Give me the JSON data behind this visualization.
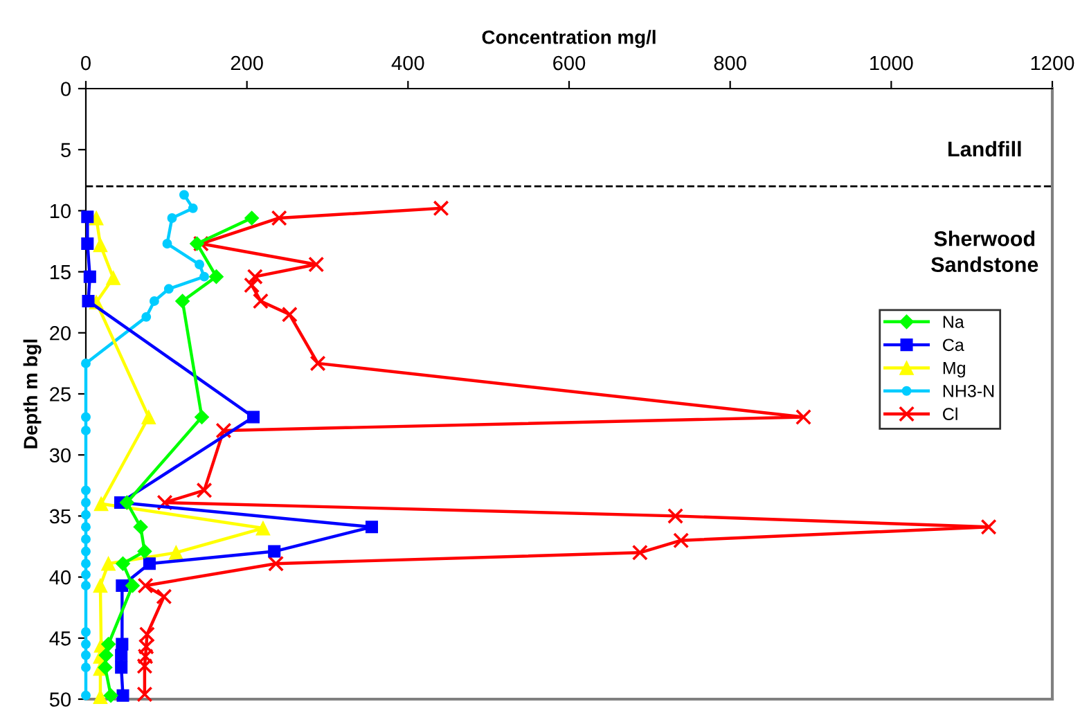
{
  "chart_data": {
    "type": "line",
    "orientation": "horizontal",
    "xlabel": "Concentration mg/l",
    "ylabel": "Depth m bgl",
    "xlim": [
      0,
      1200
    ],
    "xticks": [
      0,
      200,
      400,
      600,
      800,
      1000,
      1200
    ],
    "ylim": [
      50,
      0
    ],
    "yticks": [
      0,
      5,
      10,
      15,
      20,
      25,
      30,
      35,
      40,
      45,
      50
    ],
    "grid": false,
    "legend": "right",
    "line_style": "solid",
    "ref_lines": [
      {
        "axis": "y",
        "value": 8,
        "color": "#000000",
        "line_style": "dashed"
      }
    ],
    "annotations": [
      "Landfill",
      "Sherwood\nSandstone"
    ],
    "series": [
      {
        "name": "Na",
        "color": "#00ff00",
        "marker": "diamond",
        "x": [
          10.6,
          12.7,
          15.4,
          17.4,
          26.9,
          33.9,
          35.9,
          37.9,
          38.9,
          40.7,
          45.5,
          46.4,
          47.4,
          49.7
        ],
        "values": [
          206,
          138,
          162,
          120,
          144,
          51,
          68,
          73,
          46,
          58,
          28,
          25,
          24,
          31
        ]
      },
      {
        "name": "Ca",
        "color": "#0000ff",
        "marker": "square",
        "x": [
          10.5,
          12.7,
          15.4,
          17.4,
          26.9,
          33.9,
          35.9,
          37.9,
          38.9,
          40.7,
          45.5,
          46.4,
          47.4,
          49.7
        ],
        "values": [
          2,
          2,
          5,
          3,
          208,
          43,
          355,
          234,
          79,
          45,
          45,
          44,
          44,
          46
        ]
      },
      {
        "name": "Mg",
        "color": "#ffff00",
        "marker": "triangle",
        "x": [
          10.6,
          12.8,
          15.5,
          17.5,
          26.9,
          34,
          36,
          38,
          38.9,
          40.7,
          45.6,
          46.5,
          47.5,
          49.8
        ],
        "values": [
          13,
          18,
          34,
          13,
          78,
          19,
          220,
          112,
          28,
          18,
          19,
          18,
          18,
          18
        ]
      },
      {
        "name": "NH3-N",
        "color": "#00ccff",
        "marker": "circle",
        "x": [
          8.7,
          9.8,
          10.6,
          12.7,
          14.4,
          15.4,
          16.4,
          17.4,
          18.7,
          22.5,
          26.9,
          28,
          32.9,
          33.9,
          34.9,
          35.9,
          36.9,
          37.9,
          38.9,
          39.8,
          40.7,
          44.5,
          45.5,
          46.4,
          47.4,
          49.7
        ],
        "values": [
          122,
          133,
          107,
          101,
          141,
          147,
          103,
          85,
          75,
          0,
          0,
          0,
          0,
          0,
          0,
          0,
          0,
          0,
          0,
          0,
          0,
          0,
          0,
          0,
          0,
          0
        ]
      },
      {
        "name": "Cl",
        "color": "#ff0000",
        "marker": "cross",
        "x": [
          9.8,
          10.6,
          12.7,
          14.4,
          15.4,
          16.1,
          17.4,
          18.5,
          22.5,
          26.9,
          28,
          32.9,
          33.9,
          35,
          35.9,
          37,
          38,
          38.9,
          40.7,
          41.6,
          44.7,
          45.7,
          46.5,
          47.3,
          49.6
        ],
        "values": [
          441,
          240,
          143,
          286,
          210,
          206,
          217,
          253,
          288,
          891,
          171,
          147,
          98,
          732,
          1121,
          739,
          688,
          236,
          74,
          97,
          76,
          75,
          74,
          73,
          73
        ]
      }
    ]
  }
}
